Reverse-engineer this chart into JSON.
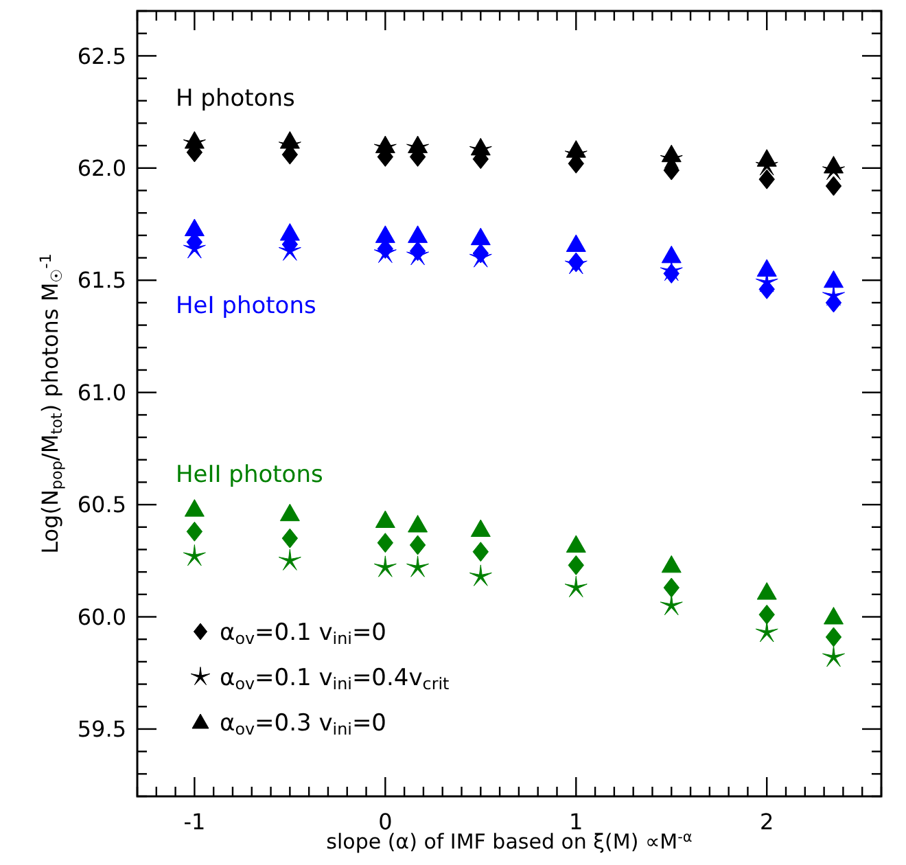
{
  "chart_data": {
    "type": "scatter",
    "xlabel": "slope (α) of IMF based on ξ(M) ∝M$^{-α}$",
    "ylabel": "Log(N$_{pop}$/M$_{tot}$) photons M$_{☉}$$^{-1}$",
    "x": [
      -1,
      -0.5,
      0,
      0.17,
      0.5,
      1,
      1.5,
      2,
      2.35
    ],
    "series": [
      {
        "name": "α$_{ov}$=0.1 v$_{ini}$=0",
        "color": "#000000",
        "marker": "diamond",
        "values": [
          62.07,
          62.06,
          62.05,
          62.05,
          62.04,
          62.02,
          61.99,
          61.95,
          61.92
        ]
      },
      {
        "name": "α$_{ov}$=0.1 v$_{ini}$=0.4v$_{crit}$",
        "color": "#000000",
        "marker": "star",
        "values": [
          62.11,
          62.1,
          62.09,
          62.09,
          62.08,
          62.06,
          62.04,
          62.01,
          61.99
        ]
      },
      {
        "name": "α$_{ov}$=0.3 v$_{ini}$=0",
        "color": "#000000",
        "marker": "triangle",
        "values": [
          62.12,
          62.12,
          62.1,
          62.1,
          62.09,
          62.08,
          62.06,
          62.04,
          62.01
        ]
      },
      {
        "color": "#0000ff",
        "marker": "diamond",
        "values": [
          61.67,
          61.66,
          61.64,
          61.63,
          61.62,
          61.58,
          61.53,
          61.46,
          61.4
        ]
      },
      {
        "color": "#0000ff",
        "marker": "star",
        "values": [
          61.64,
          61.63,
          61.62,
          61.61,
          61.6,
          61.57,
          61.54,
          61.49,
          61.43
        ]
      },
      {
        "color": "#0000ff",
        "marker": "triangle",
        "values": [
          61.73,
          61.71,
          61.7,
          61.7,
          61.69,
          61.66,
          61.61,
          61.55,
          61.5
        ]
      },
      {
        "color": "#008000",
        "marker": "diamond",
        "values": [
          60.38,
          60.35,
          60.33,
          60.32,
          60.29,
          60.23,
          60.13,
          60.01,
          59.91
        ]
      },
      {
        "color": "#008000",
        "marker": "star",
        "values": [
          60.27,
          60.25,
          60.22,
          60.22,
          60.18,
          60.13,
          60.05,
          59.93,
          59.82
        ]
      },
      {
        "color": "#008000",
        "marker": "triangle",
        "values": [
          60.48,
          60.46,
          60.43,
          60.41,
          60.39,
          60.32,
          60.23,
          60.11,
          60.0
        ]
      }
    ],
    "annotations": [
      "H photons",
      "HeI photons",
      "HeII photons"
    ],
    "xlim": [
      -1.3,
      2.6
    ],
    "ylim": [
      59.2,
      62.7
    ],
    "xticks": [
      -1,
      0,
      1,
      2,
      {
        "value": -1.3,
        "label": null
      },
      {
        "value": -1.2,
        "label": null
      },
      {
        "value": -1.1,
        "label": null
      },
      {
        "value": -0.9,
        "label": null
      },
      {
        "value": -0.8,
        "label": null
      },
      {
        "value": -0.7,
        "label": null
      },
      {
        "value": -0.6,
        "label": null
      },
      {
        "value": -0.5,
        "label": null
      },
      {
        "value": -0.4,
        "label": null
      },
      {
        "value": -0.3,
        "label": null
      },
      {
        "value": -0.2,
        "label": null
      },
      {
        "value": -0.1,
        "label": null
      },
      {
        "value": 0.1,
        "label": null
      },
      {
        "value": 0.2,
        "label": null
      },
      {
        "value": 0.3,
        "label": null
      },
      {
        "value": 0.4,
        "label": null
      },
      {
        "value": 0.5,
        "label": null
      },
      {
        "value": 0.6,
        "label": null
      },
      {
        "value": 0.7,
        "label": null
      },
      {
        "value": 0.8,
        "label": null
      },
      {
        "value": 0.9,
        "label": null
      },
      {
        "value": 1.1,
        "label": null
      },
      {
        "value": 1.2,
        "label": null
      },
      {
        "value": 1.3,
        "label": null
      },
      {
        "value": 1.4,
        "label": null
      },
      {
        "value": 1.5,
        "label": null
      },
      {
        "value": 1.6,
        "label": null
      },
      {
        "value": 1.7,
        "label": null
      },
      {
        "value": 1.8,
        "label": null
      },
      {
        "value": 1.9,
        "label": null
      },
      {
        "value": 2.1,
        "label": null
      },
      {
        "value": 2.2,
        "label": null
      },
      {
        "value": 2.3,
        "label": null
      },
      {
        "value": 2.4,
        "label": null
      },
      {
        "value": 2.5,
        "label": null
      },
      {
        "value": 2.6,
        "label": null
      }
    ],
    "yticks": [
      {
        "value": 59.5,
        "label": "59.5"
      },
      {
        "value": 60.0,
        "label": "60.0"
      },
      {
        "value": 60.5,
        "label": "60.5"
      },
      {
        "value": 61.0,
        "label": "61.0"
      },
      {
        "value": 61.5,
        "label": "61.5"
      },
      {
        "value": 62.0,
        "label": "62.0"
      },
      {
        "value": 62.5,
        "label": "62.5"
      },
      {
        "value": 59.2,
        "label": null
      },
      {
        "value": 59.3,
        "label": null
      },
      {
        "value": 59.4,
        "label": null
      },
      {
        "value": 59.6,
        "label": null
      },
      {
        "value": 59.7,
        "label": null
      },
      {
        "value": 59.8,
        "label": null
      },
      {
        "value": 59.9,
        "label": null
      },
      {
        "value": 60.1,
        "label": null
      },
      {
        "value": 60.2,
        "label": null
      },
      {
        "value": 60.3,
        "label": null
      },
      {
        "value": 60.4,
        "label": null
      },
      {
        "value": 60.6,
        "label": null
      },
      {
        "value": 60.7,
        "label": null
      },
      {
        "value": 60.8,
        "label": null
      },
      {
        "value": 60.9,
        "label": null
      },
      {
        "value": 61.1,
        "label": null
      },
      {
        "value": 61.2,
        "label": null
      },
      {
        "value": 61.3,
        "label": null
      },
      {
        "value": 61.4,
        "label": null
      },
      {
        "value": 61.6,
        "label": null
      },
      {
        "value": 61.7,
        "label": null
      },
      {
        "value": 61.8,
        "label": null
      },
      {
        "value": 61.9,
        "label": null
      },
      {
        "value": 62.1,
        "label": null
      },
      {
        "value": 62.2,
        "label": null
      },
      {
        "value": 62.3,
        "label": null
      },
      {
        "value": 62.4,
        "label": null
      },
      {
        "value": 62.6,
        "label": null
      },
      {
        "value": 62.7,
        "label": null
      }
    ],
    "grid": false,
    "legend": "bottom left"
  }
}
